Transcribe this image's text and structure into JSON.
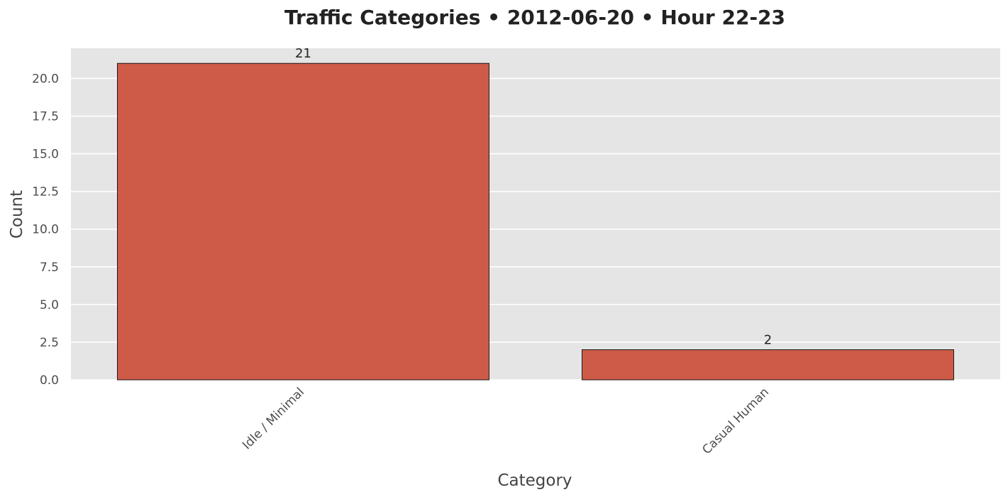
{
  "chart_data": {
    "type": "bar",
    "title": "Traffic Categories • 2012-06-20 • Hour 22-23",
    "xlabel": "Category",
    "ylabel": "Count",
    "categories": [
      "Idle / Minimal",
      "Casual Human"
    ],
    "values": [
      21,
      2
    ],
    "data_labels": [
      "21",
      "2"
    ],
    "ylim": [
      0,
      22
    ],
    "yticks": [
      0.0,
      2.5,
      5.0,
      7.5,
      10.0,
      12.5,
      15.0,
      17.5,
      20.0
    ],
    "ytick_labels": [
      "0.0",
      "2.5",
      "5.0",
      "7.5",
      "10.0",
      "12.5",
      "15.0",
      "17.5",
      "20.0"
    ],
    "grid": true,
    "legend": "none",
    "colors": {
      "bar": "#cd5b48",
      "bar_edge": "#1a1a1a",
      "plot_background": "#e5e5e5",
      "grid": "#ffffff"
    }
  }
}
